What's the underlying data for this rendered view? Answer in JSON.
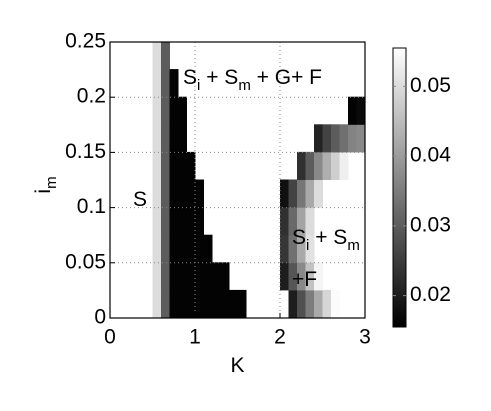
{
  "chart_data": {
    "type": "heatmap",
    "xlabel": [
      {
        "text": "K"
      }
    ],
    "ylabel": [
      {
        "text": "i"
      },
      {
        "text": "m",
        "sub": true
      }
    ],
    "annotations": [
      [
        {
          "text": "S"
        }
      ],
      [
        {
          "text": "S"
        },
        {
          "text": "i",
          "sub": true
        },
        {
          "text": " + S"
        },
        {
          "text": "m",
          "sub": true
        },
        {
          "text": " + G+ F"
        }
      ],
      [
        {
          "text": "S"
        },
        {
          "text": "i",
          "sub": true
        },
        {
          "text": " + S"
        },
        {
          "text": "m",
          "sub": true
        }
      ],
      [
        {
          "text": "+F"
        }
      ]
    ],
    "xlim": [
      0,
      3
    ],
    "xticks": [
      0,
      1,
      2,
      3
    ],
    "ylim": [
      0,
      0.25
    ],
    "yticks": [
      0,
      0.05,
      0.1,
      0.15,
      0.2,
      0.25
    ],
    "grid": true,
    "colormap": "gray",
    "clim": [
      0.0155,
      0.0555
    ],
    "cticks": [
      0.02,
      0.03,
      0.04,
      0.05
    ],
    "x": [
      0.05,
      0.15,
      0.25,
      0.35,
      0.45,
      0.55,
      0.65,
      0.75,
      0.85,
      0.95,
      1.05,
      1.15,
      1.25,
      1.35,
      1.45,
      1.55,
      1.65,
      1.75,
      1.85,
      1.95,
      2.05,
      2.15,
      2.25,
      2.35,
      2.45,
      2.55,
      2.65,
      2.75,
      2.85,
      2.95
    ],
    "y": [
      0.0125,
      0.0375,
      0.0625,
      0.0875,
      0.1125,
      0.1375,
      0.1625,
      0.1875,
      0.2125,
      0.2375
    ],
    "z": [
      [
        null,
        null,
        null,
        null,
        null,
        0.05,
        0.03,
        0.016,
        0.016,
        0.016,
        0.016,
        0.016,
        0.016,
        0.016,
        0.016,
        0.016,
        null,
        null,
        null,
        null,
        null,
        0.02,
        0.028,
        0.035,
        0.042,
        0.049,
        0.055,
        null,
        null,
        null
      ],
      [
        null,
        null,
        null,
        null,
        null,
        0.05,
        0.03,
        0.016,
        0.016,
        0.016,
        0.016,
        0.016,
        0.016,
        0.016,
        null,
        null,
        null,
        null,
        null,
        null,
        0.02,
        0.029,
        0.037,
        0.046,
        0.054,
        null,
        null,
        null,
        null,
        null
      ],
      [
        null,
        null,
        null,
        null,
        null,
        0.05,
        0.03,
        0.016,
        0.016,
        0.016,
        0.016,
        0.016,
        null,
        null,
        null,
        null,
        null,
        null,
        null,
        null,
        0.024,
        0.033,
        0.042,
        0.051,
        null,
        null,
        null,
        null,
        null,
        null
      ],
      [
        null,
        null,
        null,
        null,
        null,
        0.05,
        0.03,
        0.016,
        0.016,
        0.016,
        0.016,
        null,
        null,
        null,
        null,
        null,
        null,
        null,
        null,
        null,
        0.023,
        0.032,
        0.041,
        0.05,
        null,
        null,
        null,
        null,
        null,
        null
      ],
      [
        null,
        null,
        null,
        null,
        null,
        0.05,
        0.03,
        0.016,
        0.016,
        0.016,
        0.016,
        null,
        null,
        null,
        null,
        null,
        null,
        null,
        null,
        null,
        0.018,
        0.026,
        0.034,
        0.042,
        0.05,
        null,
        null,
        null,
        null,
        null
      ],
      [
        null,
        null,
        null,
        null,
        null,
        0.05,
        0.03,
        0.016,
        0.016,
        0.016,
        null,
        null,
        null,
        null,
        null,
        null,
        null,
        null,
        null,
        null,
        null,
        null,
        0.023,
        0.03,
        0.037,
        0.043,
        0.048,
        0.053,
        null,
        null
      ],
      [
        null,
        null,
        null,
        null,
        null,
        0.05,
        0.03,
        0.016,
        0.016,
        null,
        null,
        null,
        null,
        null,
        null,
        null,
        null,
        null,
        null,
        null,
        null,
        null,
        null,
        null,
        0.021,
        0.026,
        0.03,
        0.033,
        0.036,
        0.037
      ],
      [
        null,
        null,
        null,
        null,
        null,
        0.05,
        0.03,
        0.016,
        0.016,
        null,
        null,
        null,
        null,
        null,
        null,
        null,
        null,
        null,
        null,
        null,
        null,
        null,
        null,
        null,
        null,
        null,
        null,
        null,
        0.016,
        0.017
      ],
      [
        null,
        null,
        null,
        null,
        null,
        0.05,
        0.03,
        0.016,
        null,
        null,
        null,
        null,
        null,
        null,
        null,
        null,
        null,
        null,
        null,
        null,
        null,
        null,
        null,
        null,
        null,
        null,
        null,
        null,
        null,
        null
      ],
      [
        null,
        null,
        null,
        null,
        null,
        0.05,
        0.03,
        null,
        null,
        null,
        null,
        null,
        null,
        null,
        null,
        null,
        null,
        null,
        null,
        null,
        null,
        null,
        null,
        null,
        null,
        null,
        null,
        null,
        null,
        null
      ]
    ]
  }
}
